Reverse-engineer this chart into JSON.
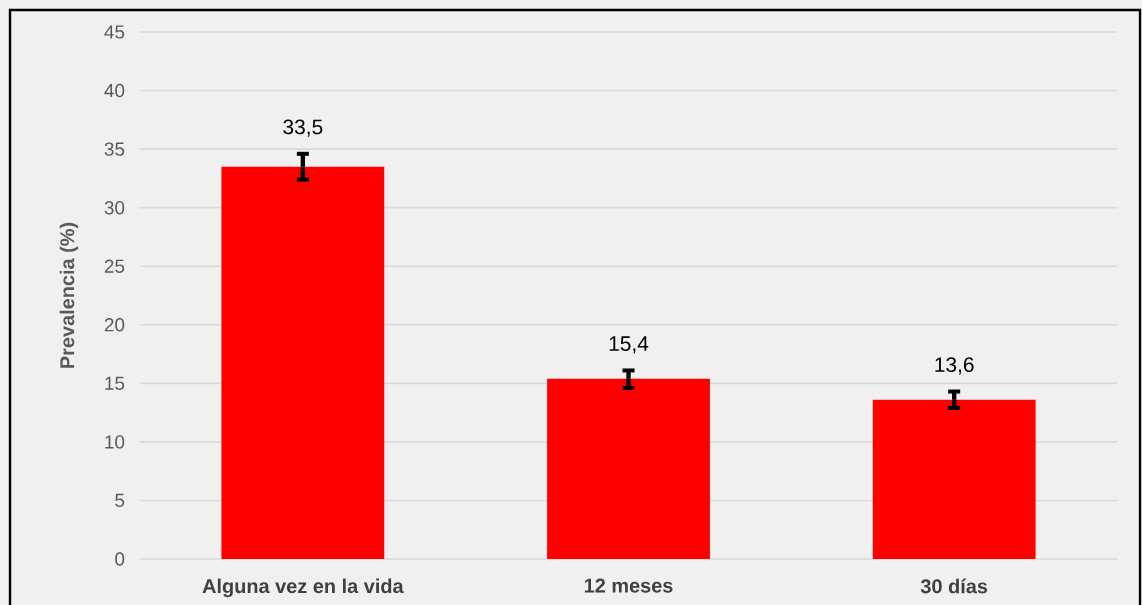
{
  "chart_data": {
    "type": "bar",
    "ylabel": "Prevalencia (%)",
    "categories": [
      "Alguna vez en la vida",
      "12 meses",
      "30 días"
    ],
    "values": [
      33.5,
      15.4,
      13.6
    ],
    "errors": [
      [
        32.4,
        34.6
      ],
      [
        14.6,
        16.1
      ],
      [
        12.9,
        14.3
      ]
    ],
    "value_labels": [
      "33,5",
      "15,4",
      "13,6"
    ],
    "color": "#ff0000",
    "ylim": [
      0,
      45
    ],
    "yticks": [
      0,
      5,
      10,
      15,
      20,
      25,
      30,
      35,
      40,
      45
    ],
    "grid": "y"
  }
}
